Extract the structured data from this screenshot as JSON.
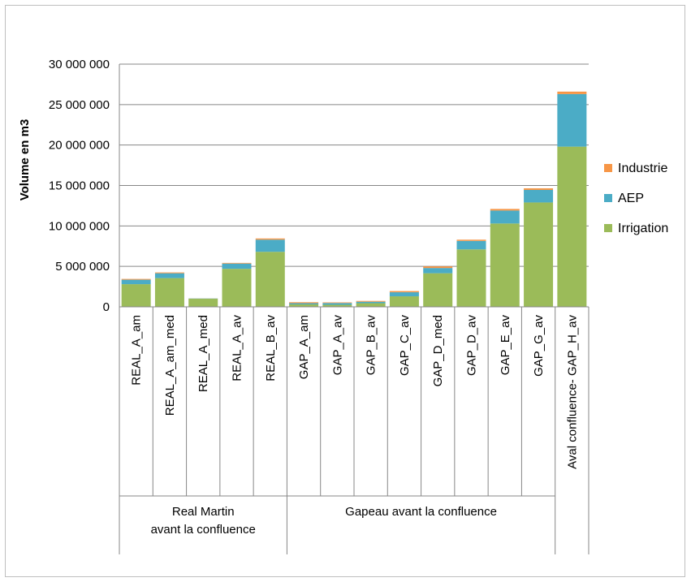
{
  "chart_data": {
    "type": "bar",
    "stacked": true,
    "ylabel": "Volume en m3",
    "ylim": [
      0,
      30000000
    ],
    "yticks": [
      0,
      5000000,
      10000000,
      15000000,
      20000000,
      25000000,
      30000000
    ],
    "ytick_labels": [
      "0",
      "5 000 000",
      "10 000 000",
      "15 000 000",
      "20 000 000",
      "25 000 000",
      "30 000 000"
    ],
    "grid": true,
    "legend_position": "right",
    "categories": [
      "REAL_A_am",
      "REAL_A_am_med",
      "REAL_A_med",
      "REAL_A_av",
      "REAL_B_av",
      "GAP_A_am",
      "GAP_A_av",
      "GAP_B_av",
      "GAP_C_av",
      "GAP_D_med",
      "GAP_D_av",
      "GAP_E_av",
      "GAP_G_av",
      "Aval confluence- GAP_H_av"
    ],
    "groups": [
      {
        "label_lines": [
          "Real Martin",
          "avant la confluence"
        ],
        "start": 0,
        "end": 4
      },
      {
        "label_lines": [
          "Gapeau avant la confluence"
        ],
        "start": 5,
        "end": 12
      },
      {
        "label_lines": [
          ""
        ],
        "start": 13,
        "end": 13
      }
    ],
    "series": [
      {
        "name": "Irrigation",
        "color": "#9bbb59",
        "values": [
          2800000,
          3550000,
          1000000,
          4700000,
          6800000,
          300000,
          250000,
          450000,
          1300000,
          4150000,
          7100000,
          10300000,
          12900000,
          19800000
        ]
      },
      {
        "name": "AEP",
        "color": "#4bacc6",
        "values": [
          550000,
          600000,
          30000,
          650000,
          1500000,
          150000,
          220000,
          180000,
          500000,
          650000,
          1050000,
          1600000,
          1550000,
          6500000
        ]
      },
      {
        "name": "Industrie",
        "color": "#f79646",
        "values": [
          100000,
          100000,
          10000,
          80000,
          150000,
          120000,
          80000,
          100000,
          150000,
          200000,
          150000,
          200000,
          200000,
          300000
        ]
      }
    ]
  }
}
